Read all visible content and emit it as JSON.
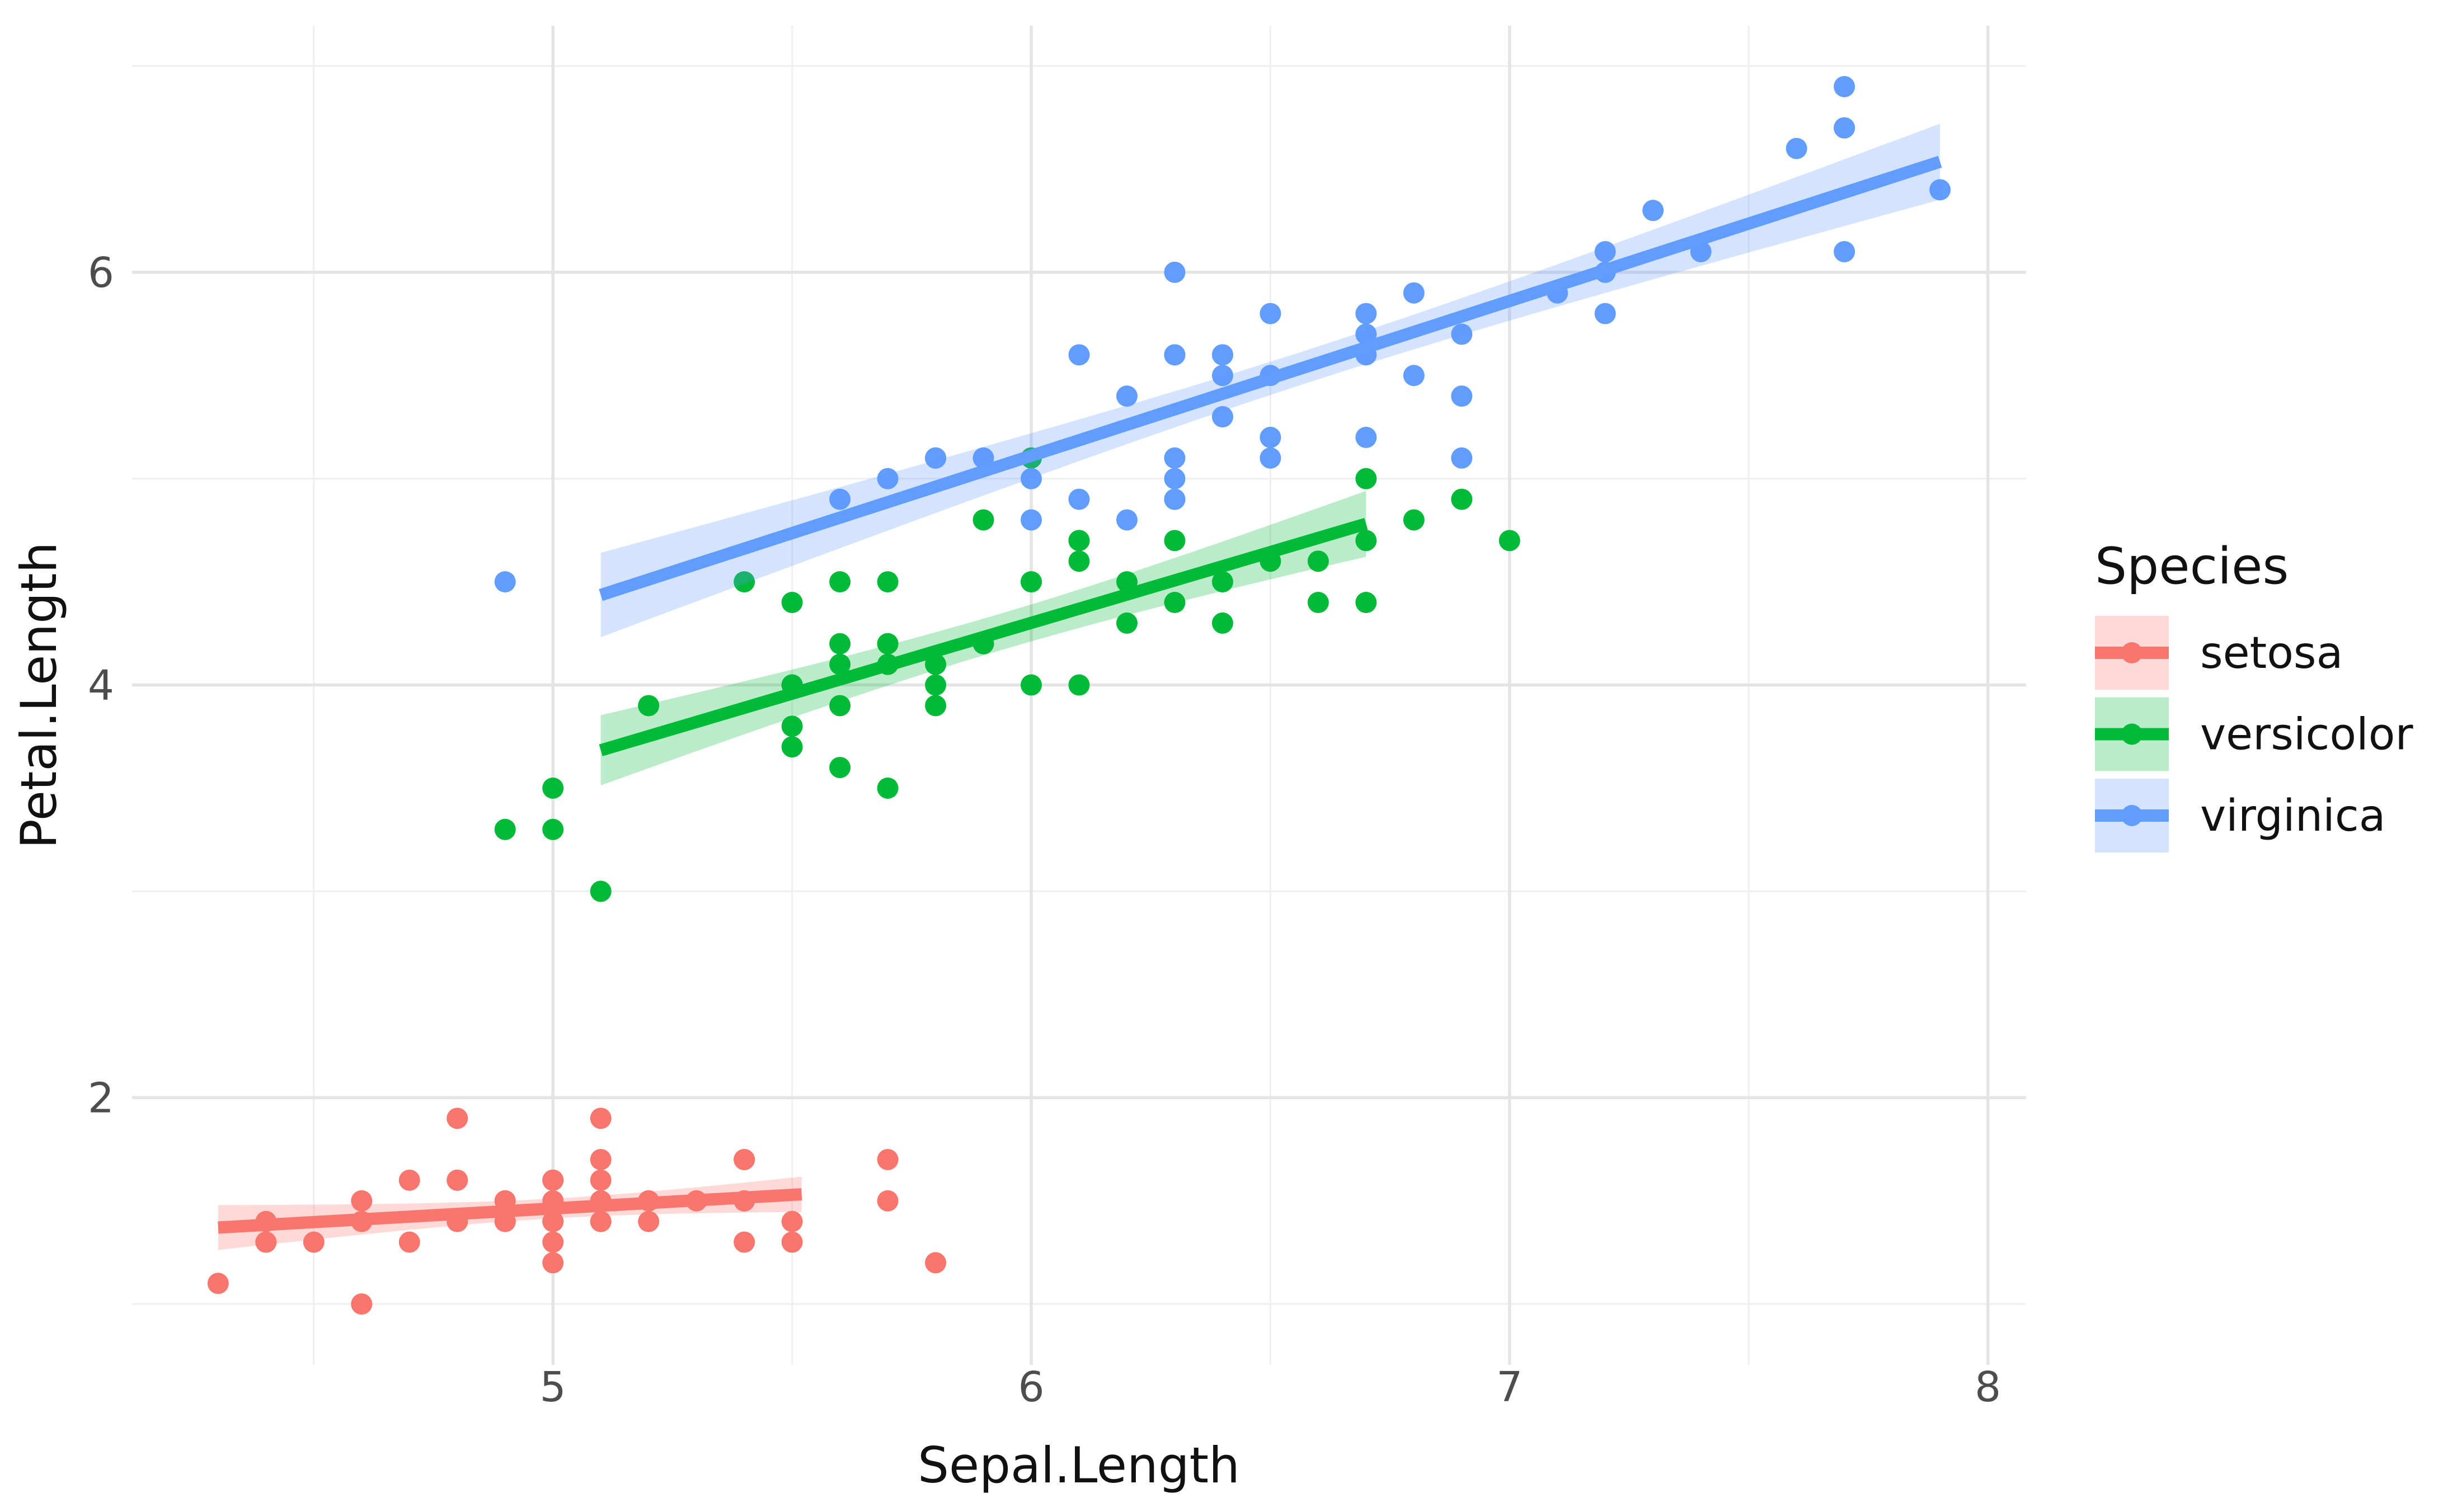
{
  "chart_data": {
    "type": "scatter",
    "title": "",
    "xlabel": "Sepal.Length",
    "ylabel": "Petal.Length",
    "xlim": [
      4.12,
      8.08
    ],
    "ylim": [
      0.705,
      7.195
    ],
    "x_ticks": [
      5,
      6,
      7,
      8
    ],
    "y_ticks": [
      2,
      4,
      6
    ],
    "x_minor_ticks": [
      4.5,
      5.5,
      6.5,
      7.5
    ],
    "y_minor_ticks": [
      1,
      3,
      5,
      7
    ],
    "grid": "major and minor, light gray on white, no panel border, no tick marks",
    "legend": {
      "title": "Species",
      "position": "right"
    },
    "style": {
      "background": "#ffffff",
      "grid_major_color": "#e4e4e4",
      "grid_minor_color": "#efefef",
      "tick_label_color": "#4d4d4d",
      "text_color": "#111111",
      "ribbon_opacity": 0.27,
      "point_radius": 19,
      "line_width": 22
    },
    "series": [
      {
        "name": "setosa",
        "color": "#F8766D",
        "points": [
          [
            5.1,
            1.4
          ],
          [
            4.9,
            1.4
          ],
          [
            4.7,
            1.3
          ],
          [
            4.6,
            1.5
          ],
          [
            5.0,
            1.4
          ],
          [
            5.4,
            1.7
          ],
          [
            4.6,
            1.4
          ],
          [
            5.0,
            1.5
          ],
          [
            4.4,
            1.4
          ],
          [
            4.9,
            1.5
          ],
          [
            5.4,
            1.5
          ],
          [
            4.8,
            1.6
          ],
          [
            4.8,
            1.4
          ],
          [
            4.3,
            1.1
          ],
          [
            5.8,
            1.2
          ],
          [
            5.7,
            1.5
          ],
          [
            5.4,
            1.3
          ],
          [
            5.1,
            1.4
          ],
          [
            5.7,
            1.7
          ],
          [
            5.1,
            1.5
          ],
          [
            5.4,
            1.7
          ],
          [
            5.1,
            1.5
          ],
          [
            4.6,
            1.0
          ],
          [
            5.1,
            1.7
          ],
          [
            4.8,
            1.9
          ],
          [
            5.0,
            1.6
          ],
          [
            5.0,
            1.6
          ],
          [
            5.2,
            1.5
          ],
          [
            5.2,
            1.4
          ],
          [
            4.7,
            1.6
          ],
          [
            4.8,
            1.6
          ],
          [
            5.4,
            1.5
          ],
          [
            5.2,
            1.5
          ],
          [
            5.5,
            1.4
          ],
          [
            4.9,
            1.5
          ],
          [
            5.0,
            1.2
          ],
          [
            5.5,
            1.3
          ],
          [
            4.9,
            1.4
          ],
          [
            4.4,
            1.3
          ],
          [
            5.1,
            1.5
          ],
          [
            5.0,
            1.3
          ],
          [
            4.5,
            1.3
          ],
          [
            4.4,
            1.3
          ],
          [
            5.0,
            1.6
          ],
          [
            5.1,
            1.9
          ],
          [
            4.8,
            1.4
          ],
          [
            5.1,
            1.6
          ],
          [
            4.6,
            1.4
          ],
          [
            5.3,
            1.5
          ],
          [
            5.0,
            1.4
          ]
        ],
        "fit": {
          "method": "lm",
          "intercept": 0.803,
          "slope": 0.132,
          "x_start": 4.3,
          "x_end": 5.52,
          "n": 50,
          "mean_x": 5.006,
          "sxx": 6.088,
          "resid_sd": 0.169,
          "t_crit": 2.011
        }
      },
      {
        "name": "versicolor",
        "color": "#00BA38",
        "points": [
          [
            7.0,
            4.7
          ],
          [
            6.4,
            4.5
          ],
          [
            6.9,
            4.9
          ],
          [
            5.5,
            4.0
          ],
          [
            6.5,
            4.6
          ],
          [
            5.7,
            4.5
          ],
          [
            6.3,
            4.7
          ],
          [
            4.9,
            3.3
          ],
          [
            6.6,
            4.6
          ],
          [
            5.2,
            3.9
          ],
          [
            5.0,
            3.5
          ],
          [
            5.9,
            4.2
          ],
          [
            6.0,
            4.0
          ],
          [
            6.1,
            4.7
          ],
          [
            5.6,
            3.6
          ],
          [
            6.7,
            4.4
          ],
          [
            5.6,
            4.5
          ],
          [
            5.8,
            4.1
          ],
          [
            6.2,
            4.5
          ],
          [
            5.6,
            3.9
          ],
          [
            5.9,
            4.8
          ],
          [
            6.1,
            4.0
          ],
          [
            6.3,
            4.9
          ],
          [
            6.1,
            4.7
          ],
          [
            6.4,
            4.3
          ],
          [
            6.6,
            4.4
          ],
          [
            6.8,
            4.8
          ],
          [
            6.7,
            5.0
          ],
          [
            6.0,
            4.5
          ],
          [
            5.7,
            3.5
          ],
          [
            5.5,
            3.8
          ],
          [
            5.5,
            3.7
          ],
          [
            5.8,
            3.9
          ],
          [
            6.0,
            5.1
          ],
          [
            5.4,
            4.5
          ],
          [
            6.0,
            4.5
          ],
          [
            6.7,
            4.7
          ],
          [
            6.3,
            4.4
          ],
          [
            5.6,
            4.1
          ],
          [
            5.5,
            4.0
          ],
          [
            5.5,
            4.4
          ],
          [
            6.1,
            4.6
          ],
          [
            5.8,
            4.0
          ],
          [
            5.0,
            3.3
          ],
          [
            5.6,
            4.2
          ],
          [
            5.7,
            4.2
          ],
          [
            5.7,
            4.2
          ],
          [
            6.2,
            4.3
          ],
          [
            5.1,
            3.0
          ],
          [
            5.7,
            4.1
          ]
        ],
        "fit": {
          "method": "lm",
          "intercept": 0.185,
          "slope": 0.686,
          "x_start": 5.1,
          "x_end": 6.7,
          "n": 50,
          "mean_x": 5.936,
          "sxx": 13.055,
          "resid_sd": 0.312,
          "t_crit": 2.011
        }
      },
      {
        "name": "virginica",
        "color": "#619CFF",
        "points": [
          [
            6.3,
            6.0
          ],
          [
            5.8,
            5.1
          ],
          [
            7.1,
            5.9
          ],
          [
            6.3,
            5.6
          ],
          [
            6.5,
            5.8
          ],
          [
            7.6,
            6.6
          ],
          [
            4.9,
            4.5
          ],
          [
            7.3,
            6.3
          ],
          [
            6.7,
            5.8
          ],
          [
            7.2,
            6.1
          ],
          [
            6.5,
            5.1
          ],
          [
            6.4,
            5.3
          ],
          [
            6.8,
            5.5
          ],
          [
            5.7,
            5.0
          ],
          [
            5.8,
            5.1
          ],
          [
            6.4,
            5.3
          ],
          [
            6.5,
            5.5
          ],
          [
            7.7,
            6.7
          ],
          [
            7.7,
            6.9
          ],
          [
            6.0,
            5.0
          ],
          [
            6.9,
            5.7
          ],
          [
            5.6,
            4.9
          ],
          [
            7.7,
            6.7
          ],
          [
            6.3,
            4.9
          ],
          [
            6.7,
            5.7
          ],
          [
            7.2,
            6.0
          ],
          [
            6.2,
            4.8
          ],
          [
            6.1,
            4.9
          ],
          [
            6.4,
            5.6
          ],
          [
            7.2,
            5.8
          ],
          [
            7.4,
            6.1
          ],
          [
            7.9,
            6.4
          ],
          [
            6.4,
            5.6
          ],
          [
            6.3,
            5.1
          ],
          [
            6.1,
            5.6
          ],
          [
            7.7,
            6.1
          ],
          [
            6.3,
            5.6
          ],
          [
            6.4,
            5.5
          ],
          [
            6.0,
            4.8
          ],
          [
            6.9,
            5.4
          ],
          [
            6.7,
            5.6
          ],
          [
            6.9,
            5.1
          ],
          [
            5.8,
            5.1
          ],
          [
            6.8,
            5.9
          ],
          [
            6.7,
            5.7
          ],
          [
            6.7,
            5.2
          ],
          [
            6.3,
            5.0
          ],
          [
            6.5,
            5.2
          ],
          [
            6.2,
            5.4
          ],
          [
            5.9,
            5.1
          ]
        ],
        "fit": {
          "method": "lm",
          "intercept": 0.611,
          "slope": 0.75,
          "x_start": 5.1,
          "x_end": 7.9,
          "n": 50,
          "mean_x": 6.588,
          "sxx": 19.813,
          "resid_sd": 0.28,
          "t_crit": 2.011
        }
      }
    ]
  }
}
